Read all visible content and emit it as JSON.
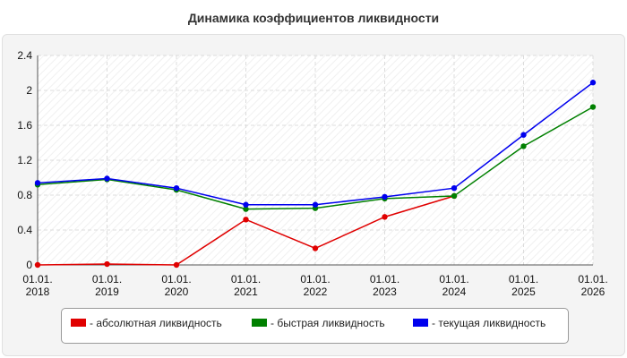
{
  "chart_data": {
    "type": "line",
    "title": "Динамика коэффициентов ликвидности",
    "xlabel": "",
    "ylabel": "",
    "categories": [
      [
        "01.01.",
        "2018"
      ],
      [
        "01.01.",
        "2019"
      ],
      [
        "01.01.",
        "2020"
      ],
      [
        "01.01.",
        "2021"
      ],
      [
        "01.01.",
        "2022"
      ],
      [
        "01.01.",
        "2023"
      ],
      [
        "01.01.",
        "2024"
      ],
      [
        "01.01.",
        "2025"
      ],
      [
        "01.01.",
        "2026"
      ]
    ],
    "yticks": [
      "0",
      "0.4",
      "0.8",
      "1.2",
      "1.6",
      "2",
      "2.4"
    ],
    "ylim": [
      0,
      2.4
    ],
    "grid": true,
    "legend_position": "bottom",
    "series": [
      {
        "name": "- абсолютная ликвидность",
        "color": "#e00000",
        "values": [
          0.0,
          0.01,
          0.0,
          0.52,
          0.19,
          0.55,
          0.79,
          null,
          null
        ]
      },
      {
        "name": "- быстрая ликвидность",
        "color": "#008000",
        "values": [
          0.92,
          0.98,
          0.86,
          0.64,
          0.65,
          0.76,
          0.79,
          1.36,
          1.81
        ]
      },
      {
        "name": "- текущая ликвидность",
        "color": "#0000ee",
        "values": [
          0.94,
          0.99,
          0.88,
          0.69,
          0.69,
          0.78,
          0.88,
          1.49,
          2.09
        ]
      }
    ]
  }
}
